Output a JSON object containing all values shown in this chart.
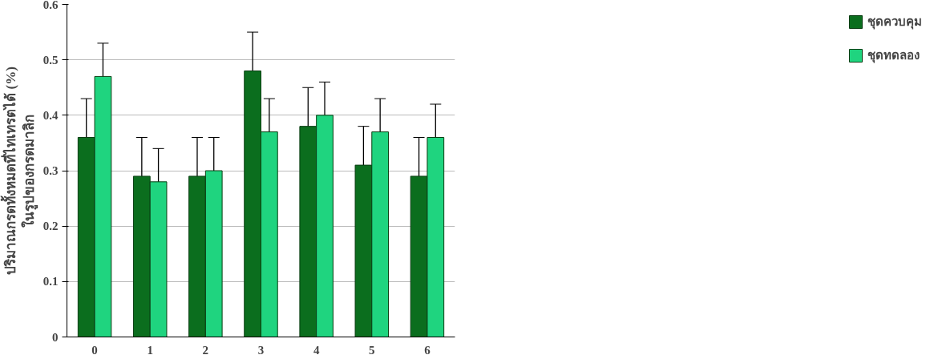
{
  "chart_data": {
    "type": "bar",
    "ylabel": "ปริมาณกรดทั้งหมดที่ไทเทรตได้ (%)\nในรูปของกรดมาลิก",
    "categories": [
      "0",
      "1",
      "2",
      "3",
      "4",
      "5",
      "6"
    ],
    "series": [
      {
        "name": "ชุดควบคุม",
        "color": "#0b6e1e",
        "values": [
          0.36,
          0.29,
          0.29,
          0.48,
          0.38,
          0.31,
          0.29
        ],
        "errors": [
          0.07,
          0.07,
          0.07,
          0.07,
          0.07,
          0.07,
          0.07
        ]
      },
      {
        "name": "ชุดทดลอง",
        "color": "#1fd47f",
        "values": [
          0.47,
          0.28,
          0.3,
          0.37,
          0.4,
          0.37,
          0.36
        ],
        "errors": [
          0.06,
          0.06,
          0.06,
          0.06,
          0.06,
          0.06,
          0.06
        ]
      }
    ],
    "ylim": [
      0,
      0.6
    ],
    "yticks": [
      0,
      0.1,
      0.2,
      0.3,
      0.4,
      0.5,
      0.6
    ],
    "grid": "y",
    "legend": "right"
  }
}
